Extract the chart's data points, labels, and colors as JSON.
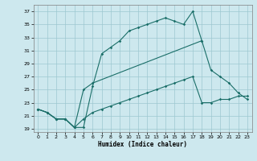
{
  "background_color": "#cde8ee",
  "grid_color": "#9dc8d0",
  "line_color": "#1a6e68",
  "xlabel": "Humidex (Indice chaleur)",
  "xlim": [
    -0.5,
    23.5
  ],
  "ylim": [
    18.5,
    38.0
  ],
  "xticks": [
    0,
    1,
    2,
    3,
    4,
    5,
    6,
    7,
    8,
    9,
    10,
    11,
    12,
    13,
    14,
    15,
    16,
    17,
    18,
    19,
    20,
    21,
    22,
    23
  ],
  "yticks": [
    19,
    21,
    23,
    25,
    27,
    29,
    31,
    33,
    35,
    37
  ],
  "line1_x": [
    0,
    1,
    2,
    3,
    4,
    5,
    6,
    7,
    8,
    9,
    10,
    11,
    12,
    13,
    14,
    15,
    16,
    17,
    18
  ],
  "line1_y": [
    22.0,
    21.5,
    20.5,
    20.5,
    19.2,
    19.2,
    25.5,
    30.5,
    31.5,
    32.5,
    34.0,
    34.5,
    35.0,
    35.5,
    36.0,
    35.5,
    35.0,
    37.0,
    32.5
  ],
  "line2_x": [
    0,
    1,
    2,
    3,
    4,
    5,
    6,
    18,
    19,
    20,
    21,
    22,
    23
  ],
  "line2_y": [
    22.0,
    21.5,
    20.5,
    20.5,
    19.2,
    25.0,
    26.0,
    32.5,
    28.0,
    27.0,
    26.0,
    24.5,
    23.5
  ],
  "line3_x": [
    0,
    1,
    2,
    3,
    4,
    5,
    6,
    7,
    8,
    9,
    10,
    11,
    12,
    13,
    14,
    15,
    16,
    17,
    18,
    19,
    20,
    21,
    22,
    23
  ],
  "line3_y": [
    22.0,
    21.5,
    20.5,
    20.5,
    19.2,
    20.5,
    21.5,
    22.0,
    22.5,
    23.0,
    23.5,
    24.0,
    24.5,
    25.0,
    25.5,
    26.0,
    26.5,
    27.0,
    23.0,
    23.0,
    23.5,
    23.5,
    24.0,
    24.0
  ]
}
